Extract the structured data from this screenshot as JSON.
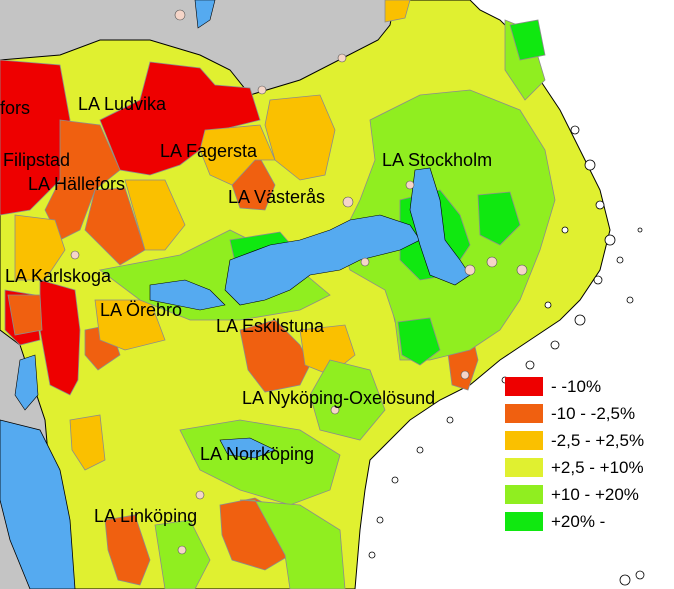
{
  "colors": {
    "neighbour_land": "#c4c4c4",
    "water": "#55aaf0",
    "border": "#8c8c8c",
    "coast": "#000000"
  },
  "regions": [
    {
      "name": "LA Ludvika",
      "class": "lt-10"
    },
    {
      "name": "LA Fagersta",
      "class": "n2_5-2_5"
    },
    {
      "name": "LA Västerås",
      "class": "p2_5-10"
    },
    {
      "name": "LA Stockholm",
      "class": "p10-20"
    },
    {
      "name": "LA Filipstad",
      "class": "lt-10"
    },
    {
      "name": "LA Hällefors",
      "class": "n10-n2_5"
    },
    {
      "name": "LA Karlskoga",
      "class": "n2_5-2_5"
    },
    {
      "name": "LA Örebro",
      "class": "p2_5-10"
    },
    {
      "name": "LA Eskilstuna",
      "class": "n10-n2_5"
    },
    {
      "name": "LA Nyköping-Oxelösund",
      "class": "p10-20"
    },
    {
      "name": "LA Norrköping",
      "class": "p2_5-10"
    },
    {
      "name": "LA Linköping",
      "class": "p2_5-10"
    }
  ],
  "labels": {
    "fors": "fors",
    "ludvika": "LA Ludvika",
    "fagersta": "LA Fagersta",
    "vasteras": "LA Västerås",
    "stockholm": "LA Stockholm",
    "filipstad": "Filipstad",
    "hallefors": "LA Hällefors",
    "karlskoga": "LA Karlskoga",
    "orebro": "LA Örebro",
    "eskilstuna": "LA Eskilstuna",
    "nykoping": "LA Nyköping-Oxelösund",
    "norrkoping": "LA Norrköping",
    "linkoping": "LA Linköping"
  },
  "legend": {
    "items": [
      {
        "label": " - -10%",
        "color": "#ee0000"
      },
      {
        "label": "-10 - -2,5%",
        "color": "#f06010"
      },
      {
        "label": "-2,5 - +2,5%",
        "color": "#fac000"
      },
      {
        "label": "+2,5 - +10%",
        "color": "#e0f030"
      },
      {
        "label": "+10 - +20%",
        "color": "#90ee20"
      },
      {
        "label": "+20% -",
        "color": "#10e810"
      }
    ]
  }
}
